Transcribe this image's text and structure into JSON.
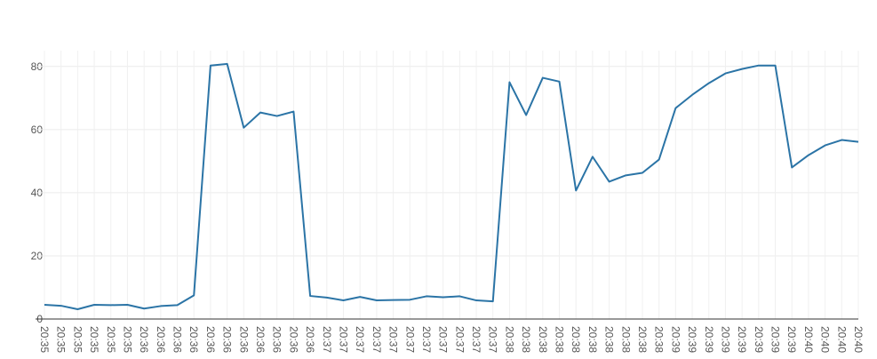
{
  "chart_data": {
    "type": "line",
    "categories": [
      "20:35",
      "20:35",
      "20:35",
      "20:35",
      "20:35",
      "20:35",
      "20:36",
      "20:36",
      "20:36",
      "20:36",
      "20:36",
      "20:36",
      "20:36",
      "20:36",
      "20:36",
      "20:36",
      "20:36",
      "20:37",
      "20:37",
      "20:37",
      "20:37",
      "20:37",
      "20:37",
      "20:37",
      "20:37",
      "20:37",
      "20:37",
      "20:37",
      "20:38",
      "20:38",
      "20:38",
      "20:38",
      "20:38",
      "20:38",
      "20:38",
      "20:38",
      "20:38",
      "20:38",
      "20:39",
      "20:39",
      "20:39",
      "20:39",
      "20:39",
      "20:39",
      "20:39",
      "20:39",
      "20:40",
      "20:40",
      "20:40",
      "20:40"
    ],
    "series": [
      {
        "color": "#2b74a6",
        "values": [
          4.5,
          4.2,
          3.1,
          4.5,
          4.4,
          4.5,
          3.3,
          4.1,
          4.4,
          7.5,
          80.3,
          80.8,
          60.6,
          65.4,
          64.3,
          65.7,
          7.3,
          6.8,
          5.9,
          7.0,
          5.9,
          6.0,
          6.1,
          7.2,
          6.9,
          7.2,
          5.9,
          5.6,
          75.0,
          64.6,
          76.4,
          75.2,
          40.7,
          51.4,
          43.5,
          45.5,
          46.3,
          50.5,
          66.8,
          71.0,
          74.7,
          77.8,
          79.2,
          80.3,
          80.3,
          48.0,
          51.9,
          55.0,
          56.7,
          56.1
        ]
      }
    ],
    "ylim": [
      0,
      85
    ],
    "yticks": [
      0,
      20,
      40,
      60,
      80
    ],
    "grid": true
  }
}
